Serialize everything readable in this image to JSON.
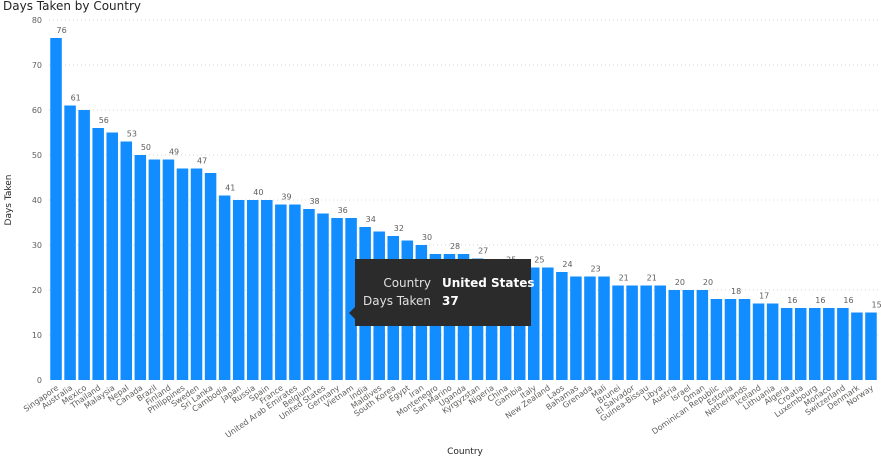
{
  "chart_data": {
    "type": "bar",
    "title": "Days Taken by Country",
    "xlabel": "Country",
    "ylabel": "Days Taken",
    "ylim": [
      0,
      80
    ],
    "yticks": [
      0,
      10,
      20,
      30,
      40,
      50,
      60,
      70,
      80
    ],
    "grid": true,
    "bar_color": "#118DFF",
    "categories": [
      "Singapore",
      "Australia",
      "Mexico",
      "Thailand",
      "Malaysia",
      "Nepal",
      "Canada",
      "Brazil",
      "Finland",
      "Philippines",
      "Sweden",
      "Sri Lanka",
      "Cambodia",
      "Japan",
      "Russia",
      "Spain",
      "France",
      "United Arab Emirates",
      "Belgium",
      "United States",
      "Germany",
      "Vietnam",
      "India",
      "Maldives",
      "South Korea",
      "Egypt",
      "Iran",
      "Montenegro",
      "San Marino",
      "Uganda",
      "Kyrgyzstan",
      "Nigeria",
      "China",
      "Gambia",
      "Italy",
      "New Zealand",
      "Laos",
      "Bahamas",
      "Grenada",
      "Mali",
      "Brunei",
      "El Salvador",
      "Guinea-Bissau",
      "Libya",
      "Austria",
      "Israel",
      "Oman",
      "Dominican Republic",
      "Estonia",
      "Netherlands",
      "Iceland",
      "Lithuania",
      "Algeria",
      "Croatia",
      "Luxembourg",
      "Monaco",
      "Switzerland",
      "Denmark",
      "Norway"
    ],
    "values": [
      76,
      61,
      60,
      56,
      55,
      53,
      50,
      49,
      49,
      47,
      47,
      46,
      41,
      40,
      40,
      40,
      39,
      39,
      38,
      37,
      36,
      36,
      34,
      33,
      32,
      31,
      30,
      28,
      28,
      28,
      27,
      26,
      25,
      25,
      25,
      25,
      24,
      23,
      23,
      23,
      21,
      21,
      21,
      21,
      20,
      20,
      20,
      18,
      18,
      18,
      17,
      17,
      16,
      16,
      16,
      16,
      16,
      15,
      15
    ],
    "data_labels": [
      {
        "category": "Singapore",
        "text": "76"
      },
      {
        "category": "Australia",
        "text": "61"
      },
      {
        "category": "Thailand",
        "text": "56"
      },
      {
        "category": "Nepal",
        "text": "53"
      },
      {
        "category": "Canada",
        "text": "50"
      },
      {
        "category": "Finland",
        "text": "49"
      },
      {
        "category": "Sweden",
        "text": "47"
      },
      {
        "category": "Cambodia",
        "text": "41"
      },
      {
        "category": "Russia",
        "text": "40"
      },
      {
        "category": "France",
        "text": "39"
      },
      {
        "category": "Belgium",
        "text": "38"
      },
      {
        "category": "Germany",
        "text": "36"
      },
      {
        "category": "India",
        "text": "34"
      },
      {
        "category": "South Korea",
        "text": "32"
      },
      {
        "category": "Iran",
        "text": "30"
      },
      {
        "category": "San Marino",
        "text": "28"
      },
      {
        "category": "Kyrgyzstan",
        "text": "27"
      },
      {
        "category": "China",
        "text": "25"
      },
      {
        "category": "Italy",
        "text": "25"
      },
      {
        "category": "Laos",
        "text": "24"
      },
      {
        "category": "Grenada",
        "text": "23"
      },
      {
        "category": "Brunei",
        "text": "21"
      },
      {
        "category": "Guinea-Bissau",
        "text": "21"
      },
      {
        "category": "Austria",
        "text": "20"
      },
      {
        "category": "Oman",
        "text": "20"
      },
      {
        "category": "Estonia",
        "text": "18"
      },
      {
        "category": "Iceland",
        "text": "17"
      },
      {
        "category": "Algeria",
        "text": "16"
      },
      {
        "category": "Luxembourg",
        "text": "16"
      },
      {
        "category": "Switzerland",
        "text": "16"
      },
      {
        "category": "Norway",
        "text": "15"
      }
    ]
  },
  "tooltip": {
    "rows": [
      {
        "key": "Country",
        "value": "United States"
      },
      {
        "key": "Days Taken",
        "value": "37"
      }
    ]
  }
}
